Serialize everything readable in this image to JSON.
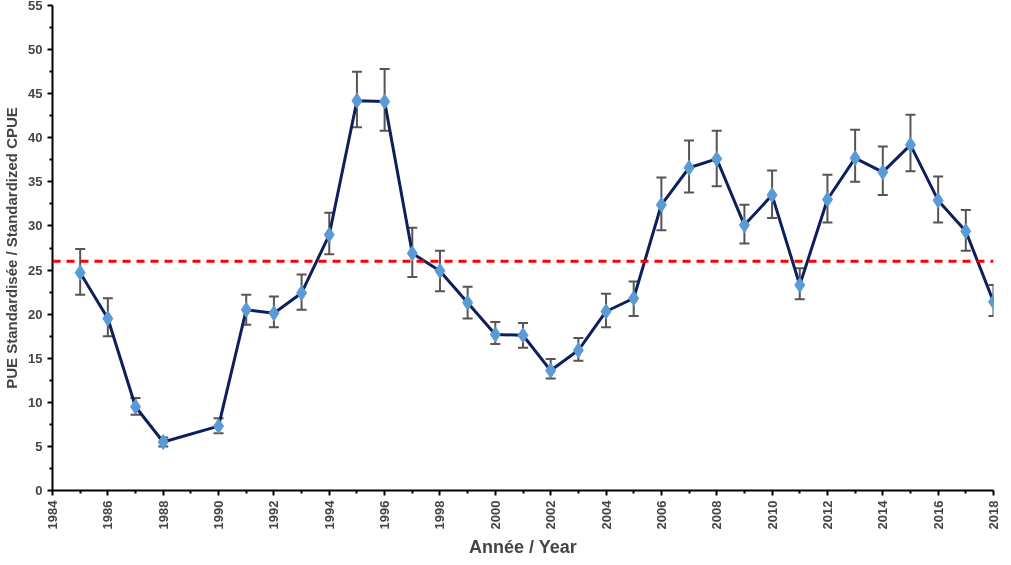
{
  "chart_data": {
    "type": "line",
    "xlabel": "Année / Year",
    "ylabel": "PUE Standardisée / Standardized CPUE",
    "x": [
      1985,
      1986,
      1987,
      1988,
      1990,
      1991,
      1992,
      1993,
      1994,
      1995,
      1996,
      1997,
      1998,
      1999,
      2000,
      2001,
      2002,
      2003,
      2004,
      2005,
      2006,
      2007,
      2008,
      2009,
      2010,
      2011,
      2012,
      2013,
      2014,
      2015,
      2016,
      2017,
      2018
    ],
    "series": [
      {
        "color": "#0d1f5c",
        "values": [
          24.7,
          19.5,
          9.5,
          5.5,
          7.3,
          20.5,
          20.1,
          22.4,
          29.0,
          44.2,
          44.1,
          26.9,
          24.9,
          21.3,
          17.7,
          17.6,
          13.6,
          15.9,
          20.3,
          21.8,
          32.4,
          36.6,
          37.6,
          30.1,
          33.5,
          23.3,
          33.0,
          37.7,
          36.1,
          39.2,
          32.9,
          29.4,
          21.4
        ]
      },
      {
        "type": "scatter",
        "color": "#5b9bd5",
        "marker": "diamond",
        "values": [
          24.7,
          19.5,
          9.5,
          5.5,
          7.3,
          20.5,
          20.1,
          22.4,
          29.0,
          44.2,
          44.1,
          26.9,
          24.9,
          21.3,
          17.7,
          17.6,
          13.6,
          15.9,
          20.3,
          21.8,
          32.4,
          36.6,
          37.6,
          30.1,
          33.5,
          23.3,
          33.0,
          37.7,
          36.1,
          39.2,
          32.9,
          29.4,
          21.4
        ],
        "errors": [
          [
            22.2,
            27.4
          ],
          [
            17.5,
            21.8
          ],
          [
            8.6,
            10.5
          ],
          [
            5.0,
            6.0
          ],
          [
            6.5,
            8.2
          ],
          [
            18.8,
            22.2
          ],
          [
            18.5,
            22.0
          ],
          [
            20.5,
            24.5
          ],
          [
            26.8,
            31.5
          ],
          [
            41.2,
            47.5
          ],
          [
            40.8,
            47.8
          ],
          [
            24.2,
            29.8
          ],
          [
            22.6,
            27.2
          ],
          [
            19.5,
            23.1
          ],
          [
            16.6,
            19.1
          ],
          [
            16.2,
            19.0
          ],
          [
            12.7,
            14.9
          ],
          [
            14.7,
            17.3
          ],
          [
            18.5,
            22.3
          ],
          [
            19.8,
            23.7
          ],
          [
            29.5,
            35.5
          ],
          [
            33.8,
            39.7
          ],
          [
            34.5,
            40.8
          ],
          [
            28.0,
            32.4
          ],
          [
            30.9,
            36.3
          ],
          [
            21.7,
            25.2
          ],
          [
            30.4,
            35.8
          ],
          [
            35.0,
            40.9
          ],
          [
            33.5,
            39.0
          ],
          [
            36.2,
            42.6
          ],
          [
            30.4,
            35.6
          ],
          [
            27.2,
            31.8
          ],
          [
            19.8,
            23.3
          ]
        ]
      }
    ],
    "ref_lines": [
      {
        "axis": "y",
        "value": 26,
        "color": "#ff0000",
        "line_style": "dashed"
      }
    ],
    "xlim": [
      1984,
      2018
    ],
    "xticks": [
      1984,
      1986,
      1988,
      1990,
      1992,
      1994,
      1996,
      1998,
      2000,
      2002,
      2004,
      2006,
      2008,
      2010,
      2012,
      2014,
      2016,
      2018
    ],
    "ylim": [
      0,
      55
    ],
    "yticks": [
      0,
      5,
      10,
      15,
      20,
      25,
      30,
      35,
      40,
      45,
      50,
      55
    ],
    "line_style": "solid",
    "grid": false
  }
}
